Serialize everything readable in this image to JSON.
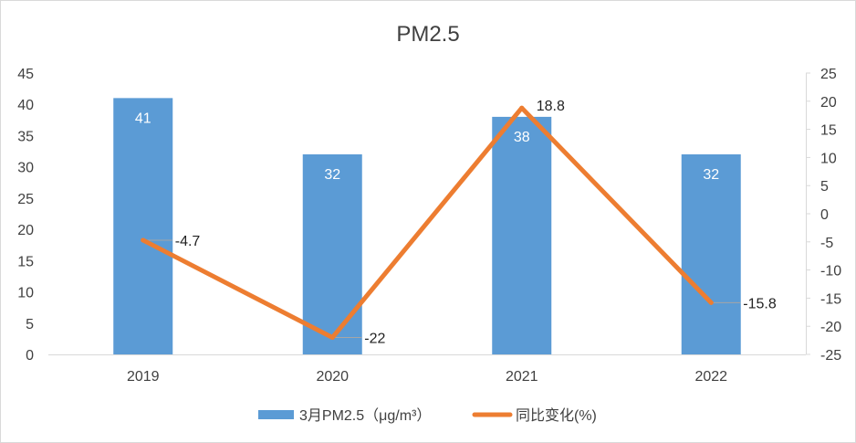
{
  "chart_data": {
    "type": "bar+line",
    "title": "PM2.5",
    "categories": [
      "2019",
      "2020",
      "2021",
      "2022"
    ],
    "series": [
      {
        "name": "3月PM2.5（μg/m³）",
        "type": "bar",
        "axis": "left",
        "values": [
          41,
          32,
          38,
          32
        ],
        "data_labels": [
          "41",
          "32",
          "38",
          "32"
        ]
      },
      {
        "name": "同比变化(%)",
        "type": "line",
        "axis": "right",
        "values": [
          -4.7,
          -22,
          18.8,
          -15.8
        ],
        "data_labels": [
          "-4.7",
          "-22",
          "18.8",
          "-15.8"
        ]
      }
    ],
    "y_left": {
      "range": [
        0,
        45
      ],
      "ticks": [
        "0",
        "5",
        "10",
        "15",
        "20",
        "25",
        "30",
        "35",
        "40",
        "45"
      ]
    },
    "y_right": {
      "range": [
        -25,
        25
      ],
      "ticks": [
        "25",
        "20",
        "15",
        "10",
        "5",
        "0",
        "-5",
        "-10",
        "-15",
        "-20",
        "-25"
      ]
    },
    "grid": false,
    "legend_position": "bottom",
    "colors": {
      "bar": "#5b9bd5",
      "line": "#ed7d31",
      "axis": "#d9d9d9",
      "leader": "#a6a6a6"
    }
  }
}
